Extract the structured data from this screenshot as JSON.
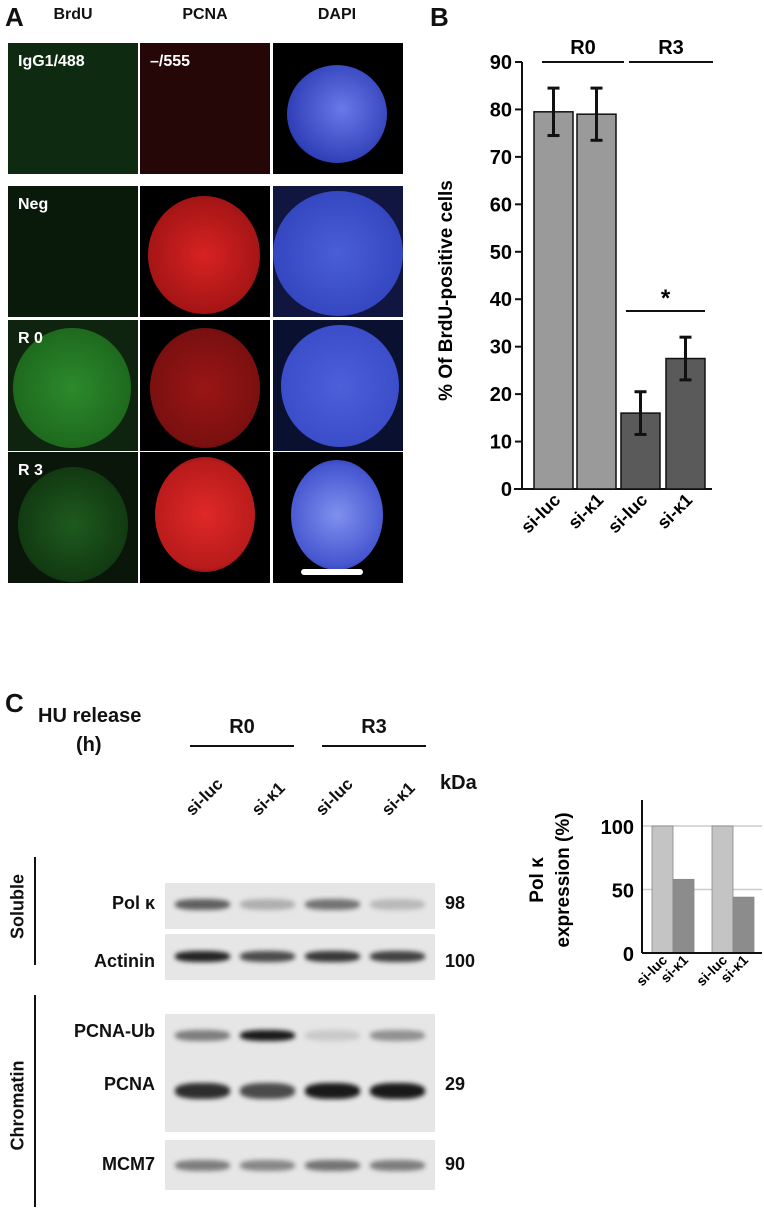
{
  "panelA": {
    "label": "A",
    "columns": [
      "BrdU",
      "PCNA",
      "DAPI"
    ],
    "rows": [
      {
        "brdu_label": "IgG1/488",
        "pcna_label": "–/555"
      },
      {
        "brdu_label": "Neg"
      },
      {
        "brdu_label": "R 0"
      },
      {
        "brdu_label": "R 3"
      }
    ],
    "colors": {
      "brdu": "#2fae2f",
      "pcna": "#d42020",
      "dapi": "#4455dd"
    }
  },
  "chart_data": [
    {
      "panel": "B",
      "type": "bar",
      "categories": [
        "si-luc",
        "si-κ1",
        "si-luc",
        "si-κ1"
      ],
      "groups": [
        {
          "label": "R0",
          "categories": [
            0,
            1
          ]
        },
        {
          "label": "R3",
          "categories": [
            2,
            3
          ]
        }
      ],
      "values": [
        79.5,
        79,
        16,
        27.5
      ],
      "errors": [
        5,
        5.5,
        4.5,
        4.5
      ],
      "bar_colors": [
        "#9a9a9a",
        "#9a9a9a",
        "#5a5a5a",
        "#5a5a5a"
      ],
      "ylabel": "% Of BrdU-positive cells",
      "ylim": [
        0,
        90
      ],
      "yticks": [
        0,
        10,
        20,
        30,
        40,
        50,
        60,
        70,
        80,
        90
      ],
      "annotation": {
        "text": "*",
        "between": [
          2,
          3
        ]
      },
      "grid": false
    },
    {
      "panel": "C-inset",
      "type": "bar",
      "categories": [
        "si-luc",
        "si-κ1",
        "si-luc",
        "si-κ1"
      ],
      "values": [
        100,
        58,
        100,
        44
      ],
      "bar_colors": [
        "#c4c4c4",
        "#8c8c8c",
        "#c4c4c4",
        "#8c8c8c"
      ],
      "ylabel_lines": [
        "Pol κ",
        "expression (%)"
      ],
      "ylim": [
        0,
        120
      ],
      "yticks": [
        0,
        50,
        100
      ],
      "grid": true
    }
  ],
  "panelB": {
    "label": "B"
  },
  "panelC": {
    "label": "C",
    "hu_release": "HU release",
    "hu_unit": "(h)",
    "groups": [
      "R0",
      "R3"
    ],
    "lanes": [
      "si-luc",
      "si-κ1",
      "si-luc",
      "si-κ1"
    ],
    "kda_label": "kDa",
    "fractions": [
      "Soluble",
      "Chromatin"
    ],
    "blots": [
      {
        "name": "Pol κ",
        "kda": "98",
        "intensity": [
          0.65,
          0.25,
          0.55,
          0.2
        ]
      },
      {
        "name": "Actinin",
        "kda": "100",
        "intensity": [
          0.95,
          0.75,
          0.85,
          0.8
        ]
      },
      {
        "name": "PCNA-Ub",
        "kda": "",
        "intensity": [
          0.5,
          1.0,
          0.12,
          0.4
        ]
      },
      {
        "name": "PCNA",
        "kda": "29",
        "intensity": [
          0.9,
          0.75,
          1.0,
          1.0
        ]
      },
      {
        "name": "MCM7",
        "kda": "90",
        "intensity": [
          0.5,
          0.45,
          0.55,
          0.5
        ]
      }
    ]
  }
}
